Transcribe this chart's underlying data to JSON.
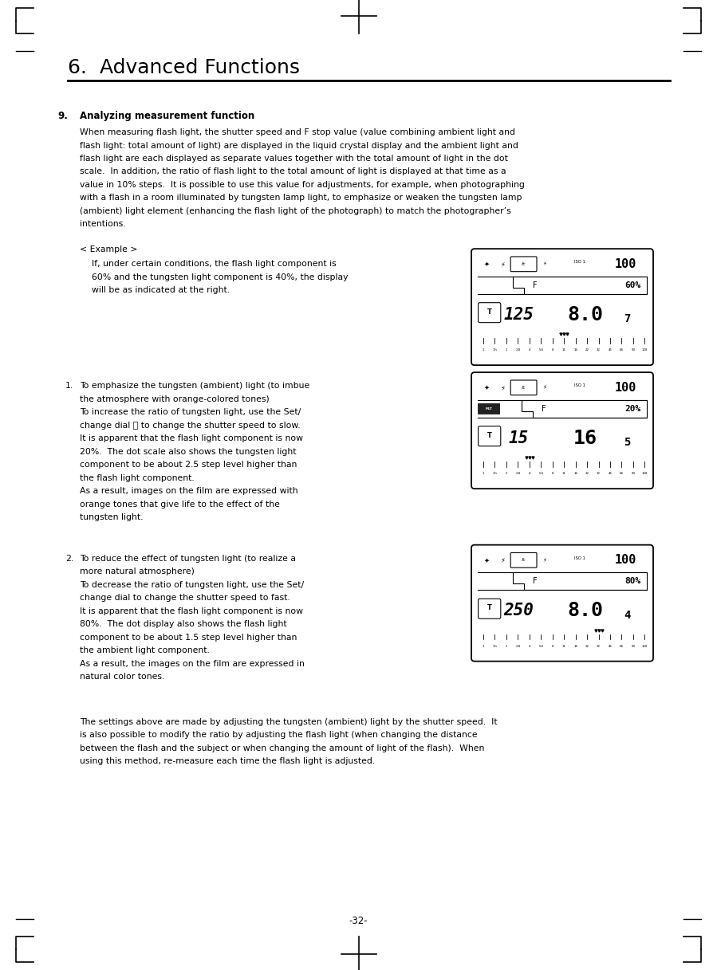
{
  "page_bg": "#ffffff",
  "page_number": "-32-",
  "chapter_title": "6.  Advanced Functions",
  "section_num": "9.",
  "section_title": "Analyzing measurement function",
  "body_text_lines": [
    "When measuring flash light, the shutter speed and F stop value (value combining ambient light and",
    "flash light: total amount of light) are displayed in the liquid crystal display and the ambient light and",
    "flash light are each displayed as separate values together with the total amount of light in the dot",
    "scale.  In addition, the ratio of flash light to the total amount of light is displayed at that time as a",
    "value in 10% steps.  It is possible to use this value for adjustments, for example, when photographing",
    "with a flash in a room illuminated by tungsten lamp light, to emphasize or weaken the tungsten lamp",
    "(ambient) light element (enhancing the flash light of the photograph) to match the photographer’s",
    "intentions."
  ],
  "example_label": "< Example >",
  "example_lines": [
    "If, under certain conditions, the flash light component is",
    "60% and the tungsten light component is 40%, the display",
    "will be as indicated at the right."
  ],
  "item1_title_lines": [
    "To emphasize the tungsten (ambient) light (to imbue",
    "the atmosphere with orange-colored tones)"
  ],
  "item1_text_lines": [
    "To increase the ratio of tungsten light, use the Set/",
    "change dial Ⓣ to change the shutter speed to slow.",
    "It is apparent that the flash light component is now",
    "20%.  The dot scale also shows the tungsten light",
    "component to be about 2.5 step level higher than",
    "the flash light component.",
    "As a result, images on the film are expressed with",
    "orange tones that give life to the effect of the",
    "tungsten light."
  ],
  "item2_title_lines": [
    "To reduce the effect of tungsten light (to realize a",
    "more natural atmosphere)"
  ],
  "item2_text_lines": [
    "To decrease the ratio of tungsten light, use the Set/",
    "change dial to change the shutter speed to fast.",
    "It is apparent that the flash light component is now",
    "80%.  The dot display also shows the flash light",
    "component to be about 1.5 step level higher than",
    "the ambient light component.",
    "As a result, the images on the film are expressed in",
    "natural color tones."
  ],
  "footer_lines": [
    "The settings above are made by adjusting the tungsten (ambient) light by the shutter speed.  It",
    "is also possible to modify the ratio by adjusting the flash light (when changing the distance",
    "between the flash and the subject or when changing the amount of light of the flash).  When",
    "using this method, re-measure each time the flash light is adjusted."
  ],
  "lcd1": {
    "top_right": "100",
    "percent": "60%",
    "shutter": "125",
    "fstop": "8.0",
    "fstop_sub": "7",
    "dot_marker_idx": 7,
    "has_extra_icons": false
  },
  "lcd2": {
    "top_right": "100",
    "percent": "20%",
    "shutter": "15",
    "fstop": "16",
    "fstop_sub": "5",
    "dot_marker_idx": 4,
    "has_extra_icons": true
  },
  "lcd3": {
    "top_right": "100",
    "percent": "80%",
    "shutter": "250",
    "fstop": "8.0",
    "fstop_sub": "4",
    "dot_marker_idx": 10,
    "has_extra_icons": false
  }
}
